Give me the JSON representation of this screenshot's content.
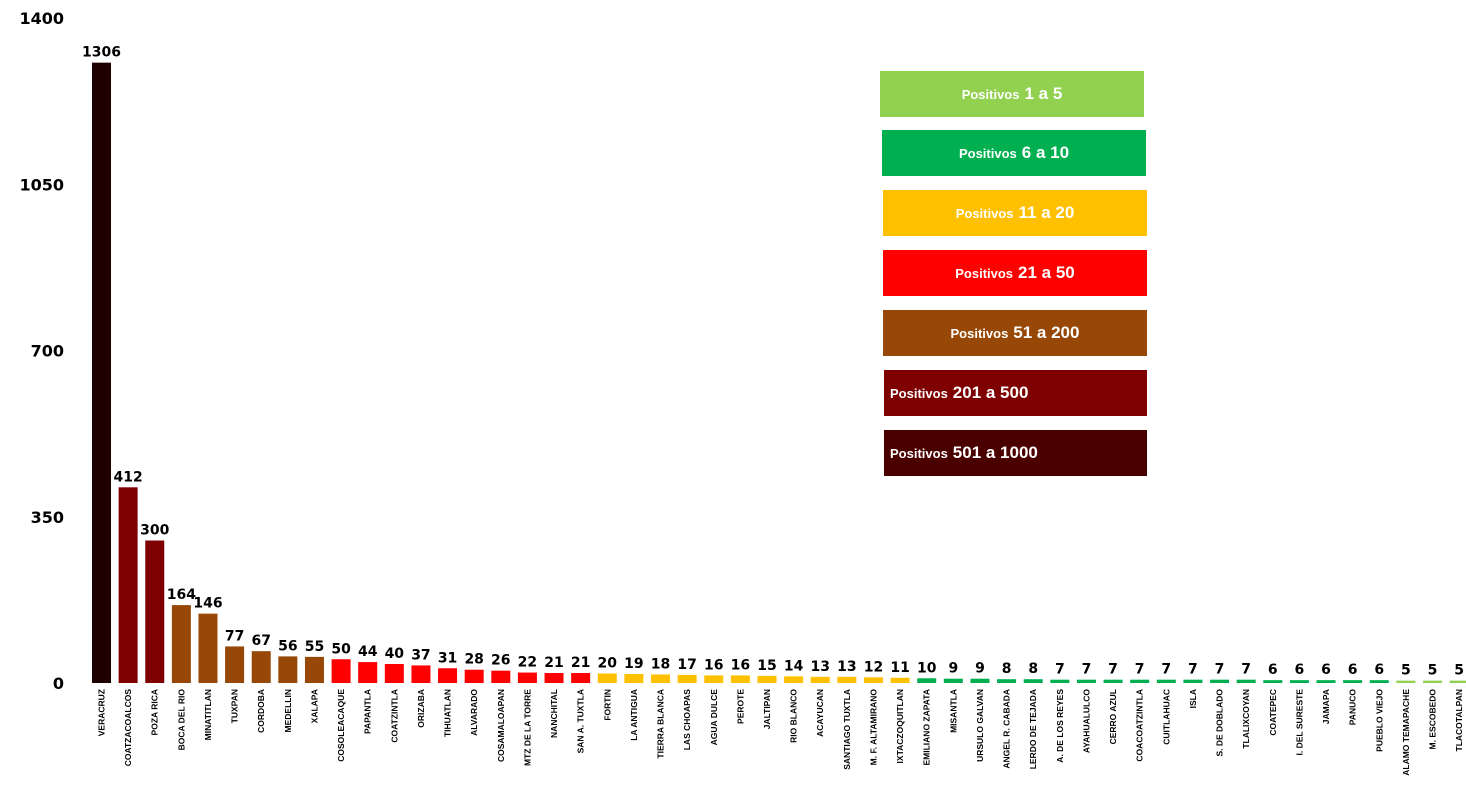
{
  "chart_data": {
    "type": "bar",
    "title": "",
    "xlabel": "",
    "ylabel": "",
    "ylim": [
      0,
      1400
    ],
    "yticks": [
      0,
      350,
      700,
      1050,
      1400
    ],
    "grid": false,
    "legend_position": "top-right",
    "categories": [
      "VERACRUZ",
      "COATZACOALCOS",
      "POZA RICA",
      "BOCA DEL RIO",
      "MINATITLAN",
      "TUXPAN",
      "CORDOBA",
      "MEDELLIN",
      "XALAPA",
      "COSOLEACAQUE",
      "PAPANTLA",
      "COATZINTLA",
      "ORIZABA",
      "TIHUATLAN",
      "ALVARADO",
      "COSAMALOAPAN",
      "MTZ DE LA TORRE",
      "NANCHITAL",
      "SAN A. TUXTLA",
      "FORTIN",
      "LA ANTIGUA",
      "TIERRA BLANCA",
      "LAS CHOAPAS",
      "AGUA DULCE",
      "PEROTE",
      "JALTIPAN",
      "RIO BLANCO",
      "ACAYUCAN",
      "SANTIAGO TUXTLA",
      "M. F. ALTAMIRANO",
      "IXTACZOQUITLAN",
      "EMILIANO ZAPATA",
      "MISANTLA",
      "URSULO GALVAN",
      "ANGEL R. CABADA",
      "LERDO DE TEJADA",
      "A. DE LOS REYES",
      "AYAHUALULCO",
      "CERRO AZUL",
      "COACOATZINTLA",
      "CUITLAHUAC",
      "ISLA",
      "S. DE DOBLADO",
      "TLALIXCOYAN",
      "COATEPEC",
      "I. DEL SURESTE",
      "JAMAPA",
      "PANUCO",
      "PUEBLO VIEJO",
      "ALAMO TEMAPACHE",
      "M. ESCOBEDO",
      "TLACOTALPAN"
    ],
    "values": [
      1306,
      412,
      300,
      164,
      146,
      77,
      67,
      56,
      55,
      50,
      44,
      40,
      37,
      31,
      28,
      26,
      22,
      21,
      21,
      20,
      19,
      18,
      17,
      16,
      16,
      15,
      14,
      13,
      13,
      12,
      11,
      10,
      9,
      9,
      8,
      8,
      7,
      7,
      7,
      7,
      7,
      7,
      7,
      7,
      6,
      6,
      6,
      6,
      6,
      5,
      5,
      5
    ],
    "colors": {
      "r1_5": "#92d050",
      "r6_10": "#00b050",
      "r11_20": "#ffc000",
      "r21_50": "#ff0000",
      "r51_200": "#974706",
      "r201_500": "#7f0000",
      "r501_1000": "#4b0000",
      "over_1000": "#1f0000"
    }
  },
  "legend": [
    {
      "prefix": "Positivos",
      "range": "1 a 5",
      "color": "#92d050"
    },
    {
      "prefix": "Positivos",
      "range": "6 a 10",
      "color": "#00b050"
    },
    {
      "prefix": "Positivos",
      "range": "11 a 20",
      "color": "#ffc000"
    },
    {
      "prefix": "Positivos",
      "range": "21 a 50",
      "color": "#ff0000"
    },
    {
      "prefix": "Positivos",
      "range": "51 a 200",
      "color": "#974706"
    },
    {
      "prefix": "Positivos",
      "range": "201 a 500",
      "color": "#7f0000"
    },
    {
      "prefix": "Positivos",
      "range": "501 a 1000",
      "color": "#4b0000"
    }
  ]
}
